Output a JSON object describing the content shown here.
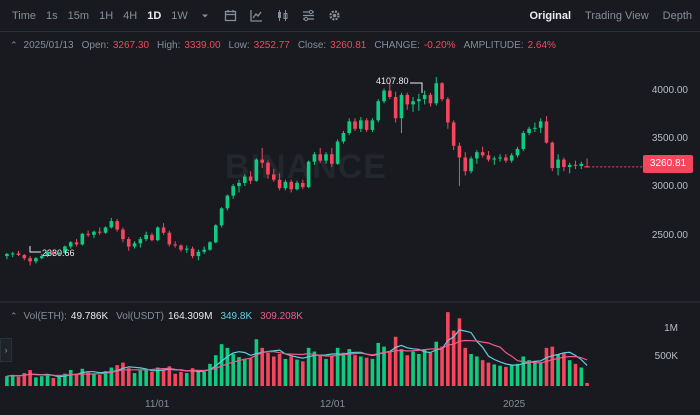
{
  "toolbar": {
    "intervals": [
      "Time",
      "1s",
      "15m",
      "1H",
      "4H",
      "1D",
      "1W"
    ],
    "active_interval": "1D",
    "icons": [
      "chevron-down-icon",
      "calendar-icon",
      "indicator-icon",
      "candle-type-icon",
      "settings-list-icon",
      "gear-icon"
    ],
    "views": [
      "Original",
      "Trading View",
      "Depth"
    ],
    "active_view": "Original"
  },
  "info": {
    "date": "2025/01/13",
    "open_label": "Open:",
    "open": "3267.30",
    "high_label": "High:",
    "high": "3339.00",
    "low_label": "Low:",
    "low": "3252.77",
    "close_label": "Close:",
    "close": "3260.81",
    "change_label": "CHANGE:",
    "change": "-0.20%",
    "amplitude_label": "AMPLITUDE:",
    "amplitude": "2.64%"
  },
  "volume_info": {
    "eth_label": "Vol(ETH):",
    "eth": "49.786K",
    "usdt_label": "Vol(USDT)",
    "usdt": "164.309M",
    "ma1": "349.8K",
    "ma2": "309.208K"
  },
  "price_axis": [
    "4000.00",
    "3500.00",
    "3000.00",
    "2500.00"
  ],
  "volume_axis": [
    "1M",
    "500K"
  ],
  "current_price": "3260.81",
  "high_marker": "4107.80",
  "low_marker": "2330.66",
  "x_axis": [
    "11/01",
    "12/01",
    "2025"
  ],
  "watermark": "BINANCE",
  "colors": {
    "up": "#0ecb81",
    "down": "#f6465d",
    "background": "#181a20",
    "ma_cyan": "#64cce4",
    "ma_pink": "#ee5d8b"
  },
  "chart_data": {
    "type": "candlestick",
    "symbol_unit": "USDT",
    "x_ticks": [
      "11/01",
      "12/01",
      "2025"
    ],
    "ylim": [
      2100,
      4250
    ],
    "volume_ylim": [
      0,
      1300000
    ],
    "ohlc": [
      [
        2420,
        2450,
        2390,
        2440
      ],
      [
        2440,
        2460,
        2410,
        2445
      ],
      [
        2445,
        2470,
        2420,
        2430
      ],
      [
        2430,
        2440,
        2380,
        2400
      ],
      [
        2400,
        2420,
        2330,
        2370
      ],
      [
        2370,
        2410,
        2350,
        2400
      ],
      [
        2400,
        2440,
        2390,
        2420
      ],
      [
        2420,
        2470,
        2410,
        2460
      ],
      [
        2460,
        2480,
        2430,
        2440
      ],
      [
        2440,
        2460,
        2420,
        2450
      ],
      [
        2450,
        2520,
        2440,
        2510
      ],
      [
        2510,
        2560,
        2490,
        2550
      ],
      [
        2550,
        2580,
        2510,
        2530
      ],
      [
        2530,
        2640,
        2520,
        2630
      ],
      [
        2630,
        2660,
        2600,
        2620
      ],
      [
        2620,
        2660,
        2590,
        2650
      ],
      [
        2650,
        2690,
        2620,
        2640
      ],
      [
        2640,
        2700,
        2630,
        2690
      ],
      [
        2690,
        2780,
        2680,
        2750
      ],
      [
        2750,
        2770,
        2650,
        2670
      ],
      [
        2670,
        2690,
        2550,
        2580
      ],
      [
        2580,
        2600,
        2470,
        2510
      ],
      [
        2510,
        2560,
        2490,
        2540
      ],
      [
        2540,
        2600,
        2500,
        2580
      ],
      [
        2580,
        2650,
        2560,
        2620
      ],
      [
        2620,
        2640,
        2560,
        2570
      ],
      [
        2570,
        2700,
        2560,
        2690
      ],
      [
        2690,
        2730,
        2620,
        2640
      ],
      [
        2640,
        2660,
        2510,
        2530
      ],
      [
        2530,
        2560,
        2500,
        2520
      ],
      [
        2520,
        2530,
        2460,
        2480
      ],
      [
        2480,
        2520,
        2450,
        2490
      ],
      [
        2490,
        2510,
        2400,
        2420
      ],
      [
        2420,
        2480,
        2380,
        2460
      ],
      [
        2460,
        2510,
        2440,
        2480
      ],
      [
        2480,
        2560,
        2470,
        2550
      ],
      [
        2550,
        2720,
        2540,
        2710
      ],
      [
        2710,
        2880,
        2690,
        2870
      ],
      [
        2870,
        3000,
        2850,
        2990
      ],
      [
        2990,
        3100,
        2960,
        3080
      ],
      [
        3080,
        3140,
        3020,
        3110
      ],
      [
        3110,
        3190,
        3080,
        3170
      ],
      [
        3170,
        3220,
        3100,
        3130
      ],
      [
        3130,
        3340,
        3120,
        3330
      ],
      [
        3330,
        3440,
        3250,
        3300
      ],
      [
        3300,
        3320,
        3150,
        3190
      ],
      [
        3190,
        3240,
        3120,
        3140
      ],
      [
        3140,
        3200,
        3040,
        3060
      ],
      [
        3060,
        3140,
        3040,
        3120
      ],
      [
        3120,
        3140,
        3020,
        3050
      ],
      [
        3050,
        3130,
        3040,
        3110
      ],
      [
        3110,
        3140,
        3050,
        3070
      ],
      [
        3070,
        3320,
        3060,
        3310
      ],
      [
        3310,
        3400,
        3280,
        3380
      ],
      [
        3380,
        3440,
        3300,
        3320
      ],
      [
        3320,
        3400,
        3290,
        3380
      ],
      [
        3380,
        3440,
        3260,
        3290
      ],
      [
        3290,
        3520,
        3280,
        3500
      ],
      [
        3500,
        3600,
        3480,
        3580
      ],
      [
        3580,
        3720,
        3560,
        3690
      ],
      [
        3690,
        3720,
        3600,
        3620
      ],
      [
        3620,
        3730,
        3590,
        3700
      ],
      [
        3700,
        3720,
        3590,
        3610
      ],
      [
        3610,
        3720,
        3590,
        3700
      ],
      [
        3700,
        3900,
        3680,
        3880
      ],
      [
        3880,
        4000,
        3860,
        3980
      ],
      [
        3980,
        4060,
        3900,
        3920
      ],
      [
        3920,
        3970,
        3680,
        3720
      ],
      [
        3720,
        3960,
        3580,
        3940
      ],
      [
        3940,
        3960,
        3800,
        3850
      ],
      [
        3850,
        3920,
        3780,
        3880
      ],
      [
        3880,
        3950,
        3790,
        3900
      ],
      [
        3900,
        3980,
        3850,
        3940
      ],
      [
        3940,
        3960,
        3830,
        3860
      ],
      [
        3860,
        4108,
        3840,
        4050
      ],
      [
        4050,
        4060,
        3880,
        3900
      ],
      [
        3900,
        3920,
        3620,
        3680
      ],
      [
        3680,
        3700,
        3420,
        3460
      ],
      [
        3460,
        3490,
        3080,
        3350
      ],
      [
        3350,
        3400,
        3180,
        3220
      ],
      [
        3220,
        3360,
        3200,
        3340
      ],
      [
        3340,
        3420,
        3290,
        3400
      ],
      [
        3400,
        3450,
        3350,
        3370
      ],
      [
        3370,
        3410,
        3310,
        3330
      ],
      [
        3330,
        3360,
        3280,
        3340
      ],
      [
        3340,
        3380,
        3310,
        3350
      ],
      [
        3350,
        3380,
        3300,
        3320
      ],
      [
        3320,
        3390,
        3300,
        3370
      ],
      [
        3370,
        3450,
        3350,
        3430
      ],
      [
        3430,
        3600,
        3410,
        3580
      ],
      [
        3580,
        3640,
        3560,
        3620
      ],
      [
        3620,
        3680,
        3590,
        3630
      ],
      [
        3630,
        3720,
        3580,
        3690
      ],
      [
        3690,
        3740,
        3480,
        3490
      ],
      [
        3490,
        3500,
        3220,
        3250
      ],
      [
        3250,
        3380,
        3180,
        3330
      ],
      [
        3330,
        3350,
        3220,
        3260
      ],
      [
        3260,
        3300,
        3200,
        3280
      ],
      [
        3280,
        3320,
        3240,
        3270
      ],
      [
        3270,
        3310,
        3240,
        3290
      ],
      [
        3267.3,
        3339,
        3252.77,
        3260.81
      ]
    ],
    "volume": [
      160000,
      180000,
      150000,
      210000,
      260000,
      140000,
      160000,
      170000,
      130000,
      150000,
      200000,
      260000,
      200000,
      280000,
      220000,
      200000,
      180000,
      240000,
      300000,
      340000,
      380000,
      290000,
      210000,
      250000,
      260000,
      230000,
      300000,
      260000,
      320000,
      200000,
      230000,
      210000,
      290000,
      250000,
      230000,
      360000,
      500000,
      680000,
      620000,
      520000,
      470000,
      430000,
      450000,
      760000,
      620000,
      540000,
      480000,
      520000,
      440000,
      480000,
      430000,
      400000,
      620000,
      560000,
      500000,
      440000,
      480000,
      620000,
      540000,
      600000,
      500000,
      480000,
      460000,
      440000,
      700000,
      640000,
      560000,
      800000,
      600000,
      500000,
      560000,
      520000,
      600000,
      540000,
      720000,
      640000,
      1200000,
      900000,
      1100000,
      620000,
      520000,
      480000,
      420000,
      380000,
      350000,
      330000,
      310000,
      340000,
      360000,
      480000,
      420000,
      400000,
      380000,
      620000,
      640000,
      520000,
      540000,
      420000,
      360000,
      300000,
      50000
    ]
  }
}
